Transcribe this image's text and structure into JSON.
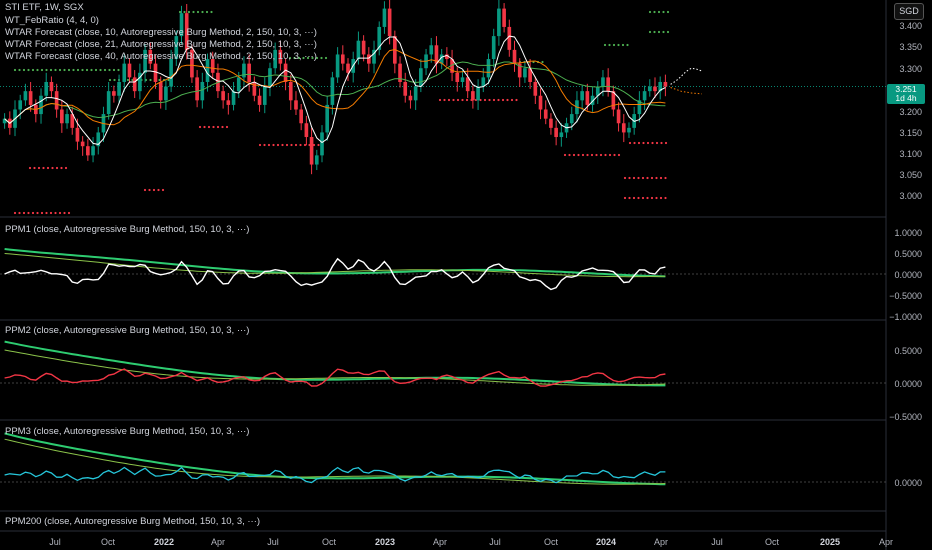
{
  "header": {
    "symbol_line": "STI ETF, 1W, SGX",
    "indicators": [
      "WT_FebRatio (4, 4, 0)",
      "WTAR Forecast (close, 10, Autoregressive Burg Method, 2, 150, 10, 3, ···)",
      "WTAR Forecast (close, 21, Autoregressive Burg Method, 2, 150, 10, 3, ···)",
      "WTAR Forecast (close, 40, Autoregressive Burg Method, 2, 150, 10, 3, ···)"
    ]
  },
  "currency_button": "SGD",
  "price_tag": {
    "price": "3.251",
    "countdown": "1d 4h",
    "color": "#089981"
  },
  "price_axis": [
    "3.400",
    "3.350",
    "3.300",
    "3.250",
    "3.200",
    "3.150",
    "3.100",
    "3.050",
    "3.000"
  ],
  "panes": [
    {
      "label": "PPM1 (close, Autoregressive Burg Method, 150, 10, 3, ···)",
      "axis": [
        "1.0000",
        "0.5000",
        "0.0000",
        "−0.5000",
        "−1.0000"
      ],
      "line_color": "#ffffff"
    },
    {
      "label": "PPM2 (close, Autoregressive Burg Method, 150, 10, 3, ···)",
      "axis": [
        "0.5000",
        "0.0000",
        "−0.5000"
      ],
      "line_color": "#f23645"
    },
    {
      "label": "PPM3 (close, Autoregressive Burg Method, 150, 10, 3, ···)",
      "axis": [
        "0.0000"
      ],
      "line_color": "#26c6da"
    },
    {
      "label": "PPM200 (close, Autoregressive Burg Method, 150, 10, 3, ···)",
      "axis": []
    }
  ],
  "time_axis": [
    {
      "label": "Jul",
      "bold": false
    },
    {
      "label": "Oct",
      "bold": false
    },
    {
      "label": "2022",
      "bold": true
    },
    {
      "label": "Apr",
      "bold": false
    },
    {
      "label": "Jul",
      "bold": false
    },
    {
      "label": "Oct",
      "bold": false
    },
    {
      "label": "2023",
      "bold": true
    },
    {
      "label": "Apr",
      "bold": false
    },
    {
      "label": "Jul",
      "bold": false
    },
    {
      "label": "Oct",
      "bold": false
    },
    {
      "label": "2024",
      "bold": true
    },
    {
      "label": "Apr",
      "bold": false
    },
    {
      "label": "Jul",
      "bold": false
    },
    {
      "label": "Oct",
      "bold": false
    },
    {
      "label": "2025",
      "bold": true
    },
    {
      "label": "Apr",
      "bold": false
    }
  ],
  "colors": {
    "up": "#089981",
    "down": "#f23645",
    "ma_fast": "#ffffff",
    "ma_mid": "#f57c00",
    "ma_slow": "#4caf50",
    "signal_green": "#4caf50",
    "signal_red": "#f23645",
    "ppm_green": "#2ecc71",
    "ppm_olive": "#8bc34a"
  },
  "chart_data": {
    "type": "candlestick",
    "price_range": [
      2.97,
      3.43
    ],
    "series_names": [
      "close",
      "ma10",
      "ma21",
      "ma40"
    ],
    "close": [
      3.18,
      3.16,
      3.2,
      3.22,
      3.24,
      3.21,
      3.19,
      3.23,
      3.26,
      3.24,
      3.2,
      3.17,
      3.19,
      3.16,
      3.13,
      3.12,
      3.1,
      3.12,
      3.15,
      3.19,
      3.24,
      3.23,
      3.26,
      3.3,
      3.27,
      3.24,
      3.28,
      3.33,
      3.3,
      3.26,
      3.22,
      3.25,
      3.31,
      3.36,
      3.41,
      3.33,
      3.27,
      3.22,
      3.26,
      3.31,
      3.28,
      3.24,
      3.22,
      3.21,
      3.24,
      3.27,
      3.3,
      3.26,
      3.23,
      3.21,
      3.25,
      3.29,
      3.33,
      3.3,
      3.26,
      3.22,
      3.2,
      3.17,
      3.14,
      3.08,
      3.1,
      3.15,
      3.21,
      3.27,
      3.32,
      3.3,
      3.28,
      3.31,
      3.35,
      3.32,
      3.3,
      3.33,
      3.38,
      3.42,
      3.36,
      3.3,
      3.26,
      3.23,
      3.22,
      3.25,
      3.29,
      3.32,
      3.34,
      3.3,
      3.32,
      3.31,
      3.28,
      3.26,
      3.27,
      3.24,
      3.22,
      3.25,
      3.27,
      3.31,
      3.36,
      3.42,
      3.38,
      3.33,
      3.3,
      3.27,
      3.29,
      3.26,
      3.23,
      3.2,
      3.18,
      3.16,
      3.14,
      3.15,
      3.17,
      3.19,
      3.22,
      3.24,
      3.21,
      3.23,
      3.25,
      3.27,
      3.24,
      3.2,
      3.17,
      3.15,
      3.16,
      3.19,
      3.22,
      3.24,
      3.25,
      3.24,
      3.26,
      3.25
    ]
  }
}
